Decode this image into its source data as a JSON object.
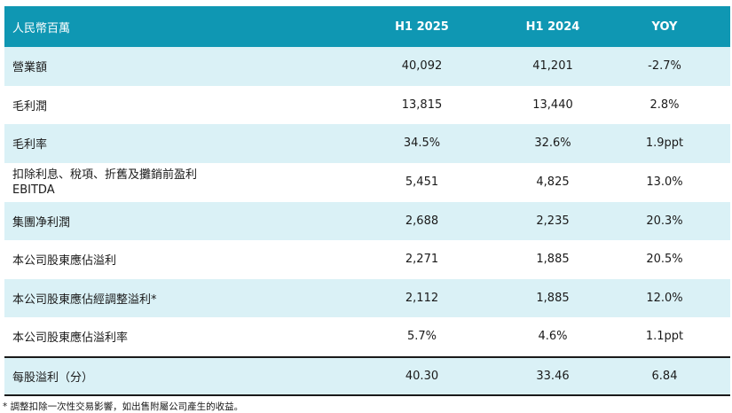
{
  "header": {
    "label": "人民幣百萬",
    "col1": "H1 2025",
    "col2": "H1 2024",
    "col3": "YOY"
  },
  "rows": [
    {
      "label": "營業額",
      "h1_2025": "40,092",
      "h1_2024": "41,201",
      "yoy": "-2.7%"
    },
    {
      "label": "毛利潤",
      "h1_2025": "13,815",
      "h1_2024": "13,440",
      "yoy": "2.8%"
    },
    {
      "label": "毛利率",
      "h1_2025": "34.5%",
      "h1_2024": "32.6%",
      "yoy": "1.9ppt"
    },
    {
      "label": "扣除利息、稅項、折舊及攤銷前盈利",
      "label2": "EBITDA",
      "h1_2025": "5,451",
      "h1_2024": "4,825",
      "yoy": "13.0%"
    },
    {
      "label": "集團净利潤",
      "h1_2025": "2,688",
      "h1_2024": "2,235",
      "yoy": "20.3%"
    },
    {
      "label": "本公司股東應佔溢利",
      "h1_2025": "2,271",
      "h1_2024": "1,885",
      "yoy": "20.5%"
    },
    {
      "label": "本公司股東應佔經調整溢利*",
      "h1_2025": "2,112",
      "h1_2024": "1,885",
      "yoy": "12.0%"
    },
    {
      "label": "本公司股東應佔溢利率",
      "h1_2025": "5.7%",
      "h1_2024": "4.6%",
      "yoy": "1.1ppt"
    },
    {
      "label": "每股溢利（分）",
      "h1_2025": "40.30",
      "h1_2024": "33.46",
      "yoy": "6.84"
    }
  ],
  "footnote": "* 調整扣除一次性交易影響，如出售附屬公司產生的收益。"
}
